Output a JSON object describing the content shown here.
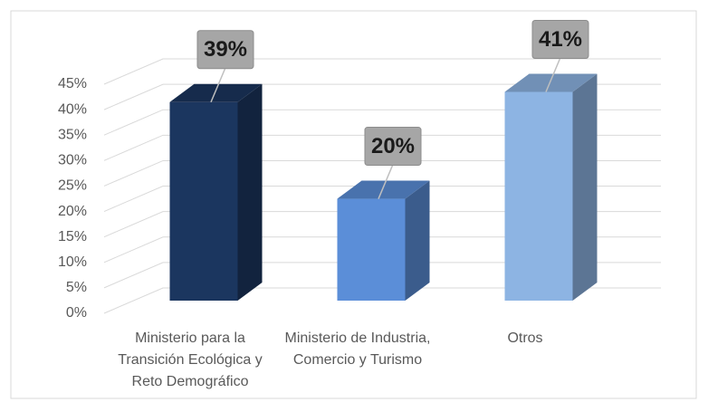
{
  "chart_data": {
    "type": "bar3d",
    "categories": [
      "Ministerio para la Transición Ecológica y Reto Demográfico",
      "Ministerio de Industria, Comercio y Turismo",
      "Otros"
    ],
    "values": [
      39,
      20,
      41
    ],
    "value_labels": [
      "39%",
      "20%",
      "41%"
    ],
    "colors": [
      "#1b365f",
      "#5b8ed8",
      "#8db4e3"
    ],
    "ylim": [
      0,
      45
    ],
    "yticks": [
      {
        "value": 0,
        "label": "0%"
      },
      {
        "value": 5,
        "label": "5%"
      },
      {
        "value": 10,
        "label": "10%"
      },
      {
        "value": 15,
        "label": "15%"
      },
      {
        "value": 20,
        "label": "20%"
      },
      {
        "value": 25,
        "label": "25%"
      },
      {
        "value": 30,
        "label": "30%"
      },
      {
        "value": 35,
        "label": "35%"
      },
      {
        "value": 40,
        "label": "40%"
      },
      {
        "value": 45,
        "label": "45%"
      }
    ],
    "grid": true
  }
}
